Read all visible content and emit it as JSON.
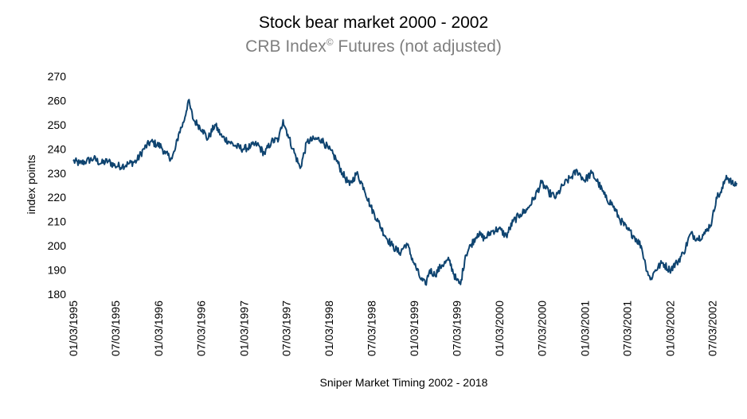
{
  "chart_data": {
    "type": "line",
    "title": "Stock bear market 2000 - 2002",
    "subtitle_main": "CRB Index",
    "subtitle_mark": "©",
    "subtitle_rest": " Futures (not adjusted)",
    "ylabel": "index points",
    "xlabel": "Sniper Market Timing 2002 - 2018",
    "ylim": [
      180,
      270
    ],
    "yticks": [
      180,
      190,
      200,
      210,
      220,
      230,
      240,
      250,
      260,
      270
    ],
    "x_tick_labels": [
      "01/03/1995",
      "07/03/1995",
      "01/03/1996",
      "07/03/1996",
      "01/03/1997",
      "07/03/1997",
      "01/03/1998",
      "07/03/1998",
      "01/03/1999",
      "07/03/1999",
      "01/03/2000",
      "07/03/2000",
      "01/03/2001",
      "07/03/2001",
      "01/03/2002",
      "07/03/2002"
    ],
    "xlim": [
      "1995-01-03",
      "2002-10-15"
    ],
    "grid": false,
    "line_color": "#0f4470",
    "series": [
      {
        "x": [
          "1995-01-03",
          "1995-02-01",
          "1995-03-01",
          "1995-04-01",
          "1995-05-01",
          "1995-06-01",
          "1995-07-01",
          "1995-08-01",
          "1995-09-01",
          "1995-10-01",
          "1995-11-01",
          "1995-12-01",
          "1996-01-15",
          "1996-02-01",
          "1996-03-01",
          "1996-03-15",
          "1996-04-01",
          "1996-04-20",
          "1996-05-10",
          "1996-06-01",
          "1996-06-20",
          "1996-07-10",
          "1996-08-01",
          "1996-09-01",
          "1996-10-01",
          "1996-11-01",
          "1996-12-01",
          "1997-01-01",
          "1997-02-01",
          "1997-03-01",
          "1997-04-01",
          "1997-05-01",
          "1997-06-01",
          "1997-06-20",
          "1997-07-10",
          "1997-08-01",
          "1997-09-01",
          "1997-10-01",
          "1997-11-01",
          "1997-12-01",
          "1998-01-01",
          "1998-02-01",
          "1998-03-01",
          "1998-04-01",
          "1998-05-01",
          "1998-06-01",
          "1998-07-01",
          "1998-08-01",
          "1998-09-01",
          "1998-10-01",
          "1998-11-01",
          "1998-12-01",
          "1999-01-01",
          "1999-02-01",
          "1999-02-20",
          "1999-03-10",
          "1999-04-01",
          "1999-05-01",
          "1999-06-01",
          "1999-07-01",
          "1999-07-20",
          "1999-08-10",
          "1999-09-01",
          "1999-10-01",
          "1999-11-01",
          "1999-12-01",
          "2000-01-01",
          "2000-02-01",
          "2000-03-01",
          "2000-04-01",
          "2000-05-01",
          "2000-06-01",
          "2000-07-01",
          "2000-08-01",
          "2000-09-01",
          "2000-10-01",
          "2000-11-01",
          "2000-12-01",
          "2001-01-01",
          "2001-02-01",
          "2001-03-01",
          "2001-04-01",
          "2001-05-01",
          "2001-06-01",
          "2001-07-01",
          "2001-08-01",
          "2001-09-01",
          "2001-09-20",
          "2001-10-10",
          "2001-11-01",
          "2001-12-01",
          "2002-01-01",
          "2002-02-01",
          "2002-03-01",
          "2002-04-01",
          "2002-05-01",
          "2002-06-01",
          "2002-07-01",
          "2002-07-20",
          "2002-08-10",
          "2002-09-01",
          "2002-10-01",
          "2002-10-15"
        ],
        "values": [
          235,
          234,
          235,
          236,
          234,
          235,
          233,
          233,
          234,
          235,
          240,
          243,
          241,
          238,
          236,
          240,
          247,
          251,
          260,
          252,
          250,
          248,
          244,
          250,
          245,
          243,
          241,
          240,
          241,
          242,
          238,
          243,
          244,
          252,
          246,
          240,
          232,
          243,
          244,
          244,
          240,
          236,
          230,
          225,
          230,
          224,
          216,
          210,
          204,
          200,
          197,
          201,
          193,
          186,
          184,
          190,
          188,
          192,
          194,
          186,
          184,
          196,
          200,
          205,
          203,
          206,
          207,
          204,
          210,
          213,
          215,
          220,
          226,
          222,
          220,
          225,
          228,
          231,
          227,
          230,
          226,
          220,
          217,
          211,
          207,
          204,
          200,
          192,
          186,
          190,
          193,
          190,
          193,
          197,
          205,
          203,
          205,
          210,
          220,
          222,
          229,
          225,
          226
        ]
      }
    ]
  }
}
